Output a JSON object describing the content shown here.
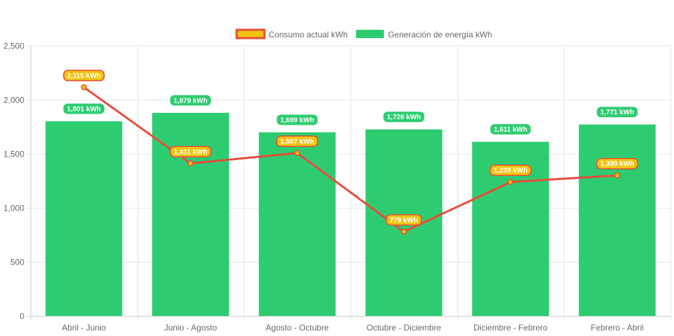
{
  "chart_data": {
    "type": "bar",
    "categories": [
      "Abril - Junio",
      "Junio - Agosto",
      "Agosto - Octubre",
      "Octubre - Diciembre",
      "Diciembre - Febrero",
      "Febrero - Abril"
    ],
    "series": [
      {
        "name": "Consumo actual kWh",
        "type": "line",
        "color": "#e74c3c",
        "fill": "#f1c40f",
        "values": [
          2115,
          1411,
          1507,
          779,
          1239,
          1300
        ],
        "labels": [
          "2,115 kWh",
          "1,411 kWh",
          "1,507 kWh",
          "779 kWh",
          "1,239 kWh",
          "1,300 kWh"
        ]
      },
      {
        "name": "Generación de energía kWh",
        "type": "bar",
        "color": "#2ecc71",
        "values": [
          1801,
          1879,
          1699,
          1726,
          1611,
          1771
        ],
        "labels": [
          "1,801 kWh",
          "1,879 kWh",
          "1,699 kWh",
          "1,726 kWh",
          "1,611 kWh",
          "1,771 kWh"
        ]
      }
    ],
    "yticks": [
      {
        "value": 0,
        "label": "0"
      },
      {
        "value": 500,
        "label": "500"
      },
      {
        "value": 1000,
        "label": "1,000"
      },
      {
        "value": 1500,
        "label": "1,500"
      },
      {
        "value": 2000,
        "label": "2,000"
      },
      {
        "value": 2500,
        "label": "2,500"
      }
    ],
    "ylim": [
      0,
      2500
    ],
    "grid": true,
    "legend_position": "top-center",
    "title": "",
    "xlabel": "",
    "ylabel": ""
  }
}
